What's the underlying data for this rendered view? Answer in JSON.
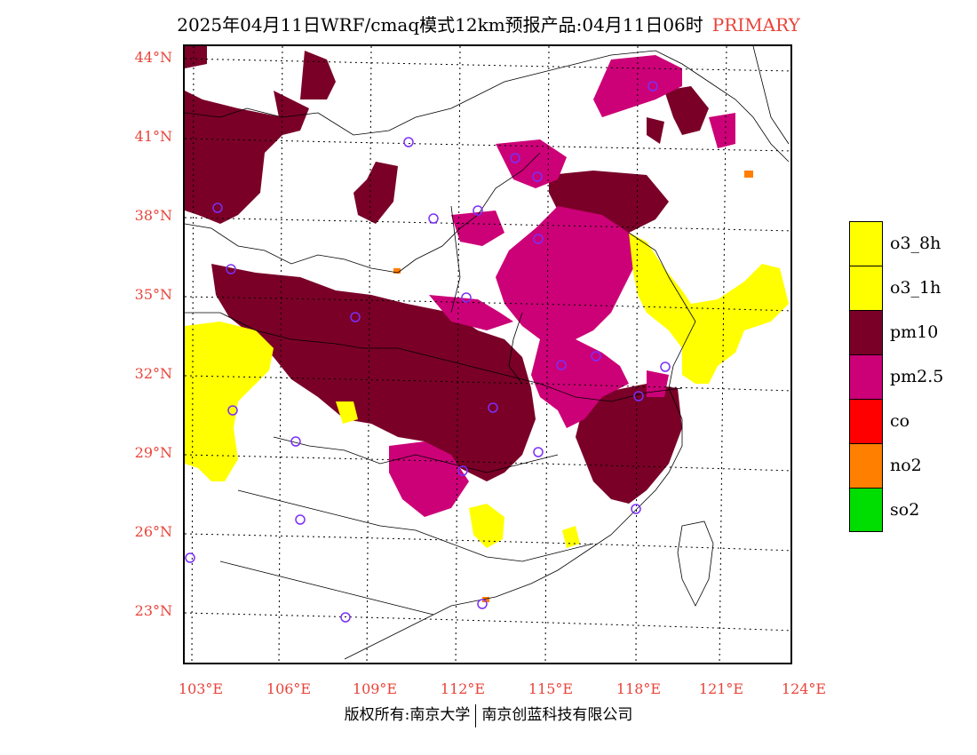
{
  "title": {
    "main": "2025年04月11日WRF/cmaq模式12km预报产品:04月11日06时",
    "tag": "PRIMARY"
  },
  "axes": {
    "latitude_ticks": [
      "44°N",
      "41°N",
      "38°N",
      "35°N",
      "32°N",
      "29°N",
      "26°N",
      "23°N"
    ],
    "longitude_ticks": [
      "103°E",
      "106°E",
      "109°E",
      "112°E",
      "115°E",
      "118°E",
      "121°E",
      "124°E"
    ]
  },
  "legend": [
    {
      "label": "o3_8h",
      "color": "#ffff00"
    },
    {
      "label": "o3_1h",
      "color": "#ffff00"
    },
    {
      "label": "pm10",
      "color": "#7a0028"
    },
    {
      "label": "pm2.5",
      "color": "#cc0077"
    },
    {
      "label": "co",
      "color": "#ff0000"
    },
    {
      "label": "no2",
      "color": "#ff7f00"
    },
    {
      "label": "so2",
      "color": "#00dd00"
    }
  ],
  "copyright": {
    "left": "版权所有:南京大学",
    "right": "南京创蓝科技有限公司"
  }
}
